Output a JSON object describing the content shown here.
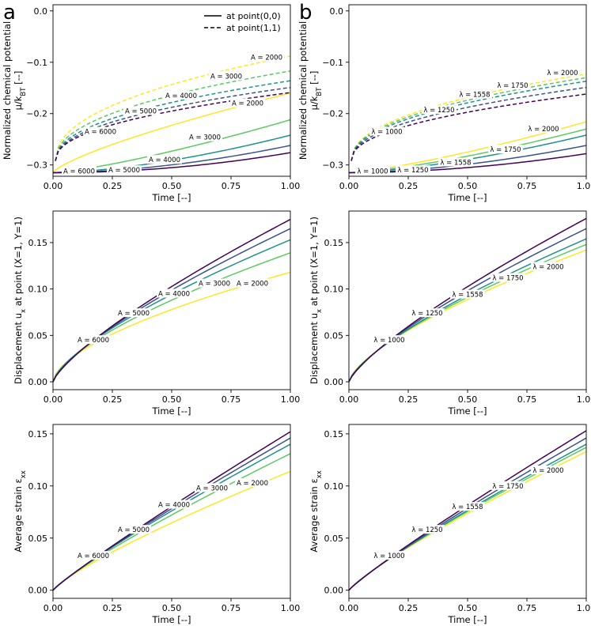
{
  "figure": {
    "panel_letters": [
      "a",
      "b"
    ],
    "legend": [
      {
        "label": "at point(0,0)",
        "style": "solid"
      },
      {
        "label": "at point(1,1)",
        "style": "dashed"
      }
    ],
    "x_axis_label": "Time [--]"
  },
  "colors": {
    "A": {
      "2000": "#fde725",
      "3000": "#5ec962",
      "4000": "#21918c",
      "5000": "#3b528b",
      "6000": "#440154"
    },
    "lambda": {
      "1000": "#440154",
      "1250": "#3b528b",
      "1558": "#21918c",
      "1750": "#5ec962",
      "2000": "#fde725"
    }
  },
  "chart_data": [
    {
      "id": "a-top",
      "type": "line",
      "ylabel_line1": "Normalized chemical potential",
      "ylabel_line2": "μ/k_BT [--]",
      "xlabel": "Time [--]",
      "xlim": [
        0,
        1
      ],
      "ylim": [
        -0.322,
        0.012
      ],
      "xticks": [
        0,
        0.25,
        0.5,
        0.75,
        1.0
      ],
      "xtick_labels": [
        "0.00",
        "0.25",
        "0.50",
        "0.75",
        "1.00"
      ],
      "yticks": [
        -0.3,
        -0.2,
        -0.1,
        0.0
      ],
      "ytick_labels": [
        "−0.3",
        "−0.2",
        "−0.1",
        "0.0"
      ],
      "series": [
        {
          "name": "A = 2000",
          "key": "2000",
          "style": "solid",
          "kind": "power",
          "y0": -0.315,
          "y1": -0.16,
          "p": 0.75
        },
        {
          "name": "A = 3000",
          "key": "3000",
          "style": "solid",
          "kind": "power",
          "y0": -0.315,
          "y1": -0.212,
          "p": 1.3
        },
        {
          "name": "A = 4000",
          "key": "4000",
          "style": "solid",
          "kind": "power",
          "y0": -0.315,
          "y1": -0.242,
          "p": 1.6
        },
        {
          "name": "A = 5000",
          "key": "5000",
          "style": "solid",
          "kind": "power",
          "y0": -0.315,
          "y1": -0.262,
          "p": 1.8
        },
        {
          "name": "A = 6000",
          "key": "6000",
          "style": "solid",
          "kind": "power",
          "y0": -0.315,
          "y1": -0.276,
          "p": 2.0
        },
        {
          "name": "A = 2000",
          "key": "2000",
          "style": "dashed",
          "kind": "power",
          "y0": -0.292,
          "y1": -0.088,
          "p": 0.45
        },
        {
          "name": "A = 3000",
          "key": "3000",
          "style": "dashed",
          "kind": "power",
          "y0": -0.292,
          "y1": -0.117,
          "p": 0.45
        },
        {
          "name": "A = 4000",
          "key": "4000",
          "style": "dashed",
          "kind": "power",
          "y0": -0.292,
          "y1": -0.136,
          "p": 0.45
        },
        {
          "name": "A = 5000",
          "key": "5000",
          "style": "dashed",
          "kind": "power",
          "y0": -0.292,
          "y1": -0.149,
          "p": 0.45
        },
        {
          "name": "A = 6000",
          "key": "6000",
          "style": "dashed",
          "kind": "power",
          "y0": -0.292,
          "y1": -0.159,
          "p": 0.45
        }
      ],
      "annotations": [
        {
          "text": "A = 2000",
          "x": 0.9,
          "y": -0.09
        },
        {
          "text": "A = 3000",
          "x": 0.73,
          "y": -0.127
        },
        {
          "text": "A = 4000",
          "x": 0.54,
          "y": -0.165
        },
        {
          "text": "A = 5000",
          "x": 0.37,
          "y": -0.195
        },
        {
          "text": "A = 6000",
          "x": 0.2,
          "y": -0.235
        },
        {
          "text": "A = 2000",
          "x": 0.82,
          "y": -0.18
        },
        {
          "text": "A = 3000",
          "x": 0.64,
          "y": -0.246
        },
        {
          "text": "A = 4000",
          "x": 0.47,
          "y": -0.29
        },
        {
          "text": "A = 5000",
          "x": 0.3,
          "y": -0.31
        },
        {
          "text": "A = 6000",
          "x": 0.11,
          "y": -0.312
        }
      ]
    },
    {
      "id": "b-top",
      "type": "line",
      "ylabel_line1": "Normalized chemical potential",
      "ylabel_line2": "μ/k_BT [--]",
      "xlabel": "Time [--]",
      "xlim": [
        0,
        1
      ],
      "ylim": [
        -0.322,
        0.012
      ],
      "xticks": [
        0,
        0.25,
        0.5,
        0.75,
        1.0
      ],
      "xtick_labels": [
        "0.00",
        "0.25",
        "0.50",
        "0.75",
        "1.00"
      ],
      "yticks": [
        -0.3,
        -0.2,
        -0.1,
        0.0
      ],
      "ytick_labels": [
        "−0.3",
        "−0.2",
        "−0.1",
        "0.0"
      ],
      "series": [
        {
          "name": "λ = 2000",
          "key": "2000",
          "style": "solid",
          "kind": "power",
          "y0": -0.315,
          "y1": -0.216,
          "p": 1.3
        },
        {
          "name": "λ = 1750",
          "key": "1750",
          "style": "solid",
          "kind": "power",
          "y0": -0.315,
          "y1": -0.23,
          "p": 1.4
        },
        {
          "name": "λ = 1558",
          "key": "1558",
          "style": "solid",
          "kind": "power",
          "y0": -0.315,
          "y1": -0.242,
          "p": 1.5
        },
        {
          "name": "λ = 1250",
          "key": "1250",
          "style": "solid",
          "kind": "power",
          "y0": -0.315,
          "y1": -0.262,
          "p": 1.7
        },
        {
          "name": "λ = 1000",
          "key": "1000",
          "style": "solid",
          "kind": "power",
          "y0": -0.315,
          "y1": -0.278,
          "p": 1.9
        },
        {
          "name": "λ = 2000",
          "key": "2000",
          "style": "dashed",
          "kind": "power",
          "y0": -0.292,
          "y1": -0.123,
          "p": 0.45
        },
        {
          "name": "λ = 1750",
          "key": "1750",
          "style": "dashed",
          "kind": "power",
          "y0": -0.292,
          "y1": -0.13,
          "p": 0.45
        },
        {
          "name": "λ = 1558",
          "key": "1558",
          "style": "dashed",
          "kind": "power",
          "y0": -0.292,
          "y1": -0.137,
          "p": 0.45
        },
        {
          "name": "λ = 1250",
          "key": "1250",
          "style": "dashed",
          "kind": "power",
          "y0": -0.292,
          "y1": -0.149,
          "p": 0.45
        },
        {
          "name": "λ = 1000",
          "key": "1000",
          "style": "dashed",
          "kind": "power",
          "y0": -0.292,
          "y1": -0.162,
          "p": 0.45
        }
      ],
      "annotations": [
        {
          "text": "λ = 2000",
          "x": 0.9,
          "y": -0.12
        },
        {
          "text": "λ = 1750",
          "x": 0.69,
          "y": -0.145
        },
        {
          "text": "λ = 1558",
          "x": 0.53,
          "y": -0.163
        },
        {
          "text": "λ = 1250",
          "x": 0.38,
          "y": -0.193
        },
        {
          "text": "λ = 1000",
          "x": 0.16,
          "y": -0.235
        },
        {
          "text": "λ = 2000",
          "x": 0.82,
          "y": -0.23
        },
        {
          "text": "λ = 1750",
          "x": 0.66,
          "y": -0.27
        },
        {
          "text": "λ = 1558",
          "x": 0.45,
          "y": -0.295
        },
        {
          "text": "λ = 1250",
          "x": 0.27,
          "y": -0.31
        },
        {
          "text": "λ = 1000",
          "x": 0.1,
          "y": -0.312
        }
      ]
    },
    {
      "id": "a-mid",
      "type": "line",
      "ylabel_line1": "Displacement u_x at point (X=1, Y=1)",
      "ylabel_line2": "",
      "xlabel": "Time [--]",
      "xlim": [
        0,
        1
      ],
      "ylim": [
        -0.0085,
        0.184
      ],
      "xticks": [
        0,
        0.25,
        0.5,
        0.75,
        1.0
      ],
      "xtick_labels": [
        "0.00",
        "0.25",
        "0.50",
        "0.75",
        "1.00"
      ],
      "yticks": [
        0,
        0.05,
        0.1,
        0.15
      ],
      "ytick_labels": [
        "0.00",
        "0.05",
        "0.10",
        "0.15"
      ],
      "series": [
        {
          "name": "A = 2000",
          "key": "2000",
          "style": "solid",
          "kind": "power",
          "y0": 0,
          "y1": 0.118,
          "p": 0.6
        },
        {
          "name": "A = 3000",
          "key": "3000",
          "style": "solid",
          "kind": "power",
          "y0": 0,
          "y1": 0.139,
          "p": 0.66
        },
        {
          "name": "A = 4000",
          "key": "4000",
          "style": "solid",
          "kind": "power",
          "y0": 0,
          "y1": 0.153,
          "p": 0.7
        },
        {
          "name": "A = 5000",
          "key": "5000",
          "style": "solid",
          "kind": "power",
          "y0": 0,
          "y1": 0.165,
          "p": 0.74
        },
        {
          "name": "A = 6000",
          "key": "6000",
          "style": "solid",
          "kind": "power",
          "y0": 0,
          "y1": 0.175,
          "p": 0.77
        }
      ],
      "annotations": [
        {
          "text": "A = 6000",
          "x": 0.17,
          "y": 0.045
        },
        {
          "text": "A = 5000",
          "x": 0.34,
          "y": 0.074
        },
        {
          "text": "A = 4000",
          "x": 0.51,
          "y": 0.095
        },
        {
          "text": "A = 3000",
          "x": 0.68,
          "y": 0.106
        },
        {
          "text": "A = 2000",
          "x": 0.84,
          "y": 0.106
        }
      ]
    },
    {
      "id": "b-mid",
      "type": "line",
      "ylabel_line1": "Displacement u_x at point (X=1, Y=1)",
      "ylabel_line2": "",
      "xlabel": "Time [--]",
      "xlim": [
        0,
        1
      ],
      "ylim": [
        -0.0085,
        0.184
      ],
      "xticks": [
        0,
        0.25,
        0.5,
        0.75,
        1.0
      ],
      "xtick_labels": [
        "0.00",
        "0.25",
        "0.50",
        "0.75",
        "1.00"
      ],
      "yticks": [
        0,
        0.05,
        0.1,
        0.15
      ],
      "ytick_labels": [
        "0.00",
        "0.05",
        "0.10",
        "0.15"
      ],
      "series": [
        {
          "name": "λ = 2000",
          "key": "2000",
          "style": "solid",
          "kind": "power",
          "y0": 0,
          "y1": 0.142,
          "p": 0.68
        },
        {
          "name": "λ = 1750",
          "key": "1750",
          "style": "solid",
          "kind": "power",
          "y0": 0,
          "y1": 0.148,
          "p": 0.7
        },
        {
          "name": "λ = 1558",
          "key": "1558",
          "style": "solid",
          "kind": "power",
          "y0": 0,
          "y1": 0.154,
          "p": 0.72
        },
        {
          "name": "λ = 1250",
          "key": "1250",
          "style": "solid",
          "kind": "power",
          "y0": 0,
          "y1": 0.165,
          "p": 0.75
        },
        {
          "name": "λ = 1000",
          "key": "1000",
          "style": "solid",
          "kind": "power",
          "y0": 0,
          "y1": 0.176,
          "p": 0.78
        }
      ],
      "annotations": [
        {
          "text": "λ = 1000",
          "x": 0.17,
          "y": 0.045
        },
        {
          "text": "λ = 1250",
          "x": 0.33,
          "y": 0.074
        },
        {
          "text": "λ = 1558",
          "x": 0.5,
          "y": 0.094
        },
        {
          "text": "λ = 1750",
          "x": 0.67,
          "y": 0.112
        },
        {
          "text": "λ = 2000",
          "x": 0.84,
          "y": 0.124
        }
      ]
    },
    {
      "id": "a-bot",
      "type": "line",
      "ylabel_line1": "Average strain ε_xx",
      "ylabel_line2": "",
      "xlabel": "Time [--]",
      "xlim": [
        0,
        1
      ],
      "ylim": [
        -0.0078,
        0.159
      ],
      "xticks": [
        0,
        0.25,
        0.5,
        0.75,
        1.0
      ],
      "xtick_labels": [
        "0.00",
        "0.25",
        "0.50",
        "0.75",
        "1.00"
      ],
      "yticks": [
        0,
        0.05,
        0.1,
        0.15
      ],
      "ytick_labels": [
        "0.00",
        "0.05",
        "0.10",
        "0.15"
      ],
      "series": [
        {
          "name": "A = 2000",
          "key": "2000",
          "style": "solid",
          "kind": "power",
          "y0": 0,
          "y1": 0.114,
          "p": 0.82
        },
        {
          "name": "A = 3000",
          "key": "3000",
          "style": "solid",
          "kind": "power",
          "y0": 0,
          "y1": 0.131,
          "p": 0.86
        },
        {
          "name": "A = 4000",
          "key": "4000",
          "style": "solid",
          "kind": "power",
          "y0": 0,
          "y1": 0.14,
          "p": 0.88
        },
        {
          "name": "A = 5000",
          "key": "5000",
          "style": "solid",
          "kind": "power",
          "y0": 0,
          "y1": 0.146,
          "p": 0.9
        },
        {
          "name": "A = 6000",
          "key": "6000",
          "style": "solid",
          "kind": "power",
          "y0": 0,
          "y1": 0.152,
          "p": 0.92
        }
      ],
      "annotations": [
        {
          "text": "A = 6000",
          "x": 0.17,
          "y": 0.033
        },
        {
          "text": "A = 5000",
          "x": 0.34,
          "y": 0.058
        },
        {
          "text": "A = 4000",
          "x": 0.51,
          "y": 0.082
        },
        {
          "text": "A = 3000",
          "x": 0.67,
          "y": 0.098
        },
        {
          "text": "A = 2000",
          "x": 0.84,
          "y": 0.103
        }
      ]
    },
    {
      "id": "b-bot",
      "type": "line",
      "ylabel_line1": "Average strain ε_xx",
      "ylabel_line2": "",
      "xlabel": "Time [--]",
      "xlim": [
        0,
        1
      ],
      "ylim": [
        -0.0078,
        0.159
      ],
      "xticks": [
        0,
        0.25,
        0.5,
        0.75,
        1.0
      ],
      "xtick_labels": [
        "0.00",
        "0.25",
        "0.50",
        "0.75",
        "1.00"
      ],
      "yticks": [
        0,
        0.05,
        0.1,
        0.15
      ],
      "ytick_labels": [
        "0.00",
        "0.05",
        "0.10",
        "0.15"
      ],
      "series": [
        {
          "name": "λ = 2000",
          "key": "2000",
          "style": "solid",
          "kind": "power",
          "y0": 0,
          "y1": 0.133,
          "p": 0.85
        },
        {
          "name": "λ = 1750",
          "key": "1750",
          "style": "solid",
          "kind": "power",
          "y0": 0,
          "y1": 0.137,
          "p": 0.86
        },
        {
          "name": "λ = 1558",
          "key": "1558",
          "style": "solid",
          "kind": "power",
          "y0": 0,
          "y1": 0.14,
          "p": 0.87
        },
        {
          "name": "λ = 1250",
          "key": "1250",
          "style": "solid",
          "kind": "power",
          "y0": 0,
          "y1": 0.146,
          "p": 0.89
        },
        {
          "name": "λ = 1000",
          "key": "1000",
          "style": "solid",
          "kind": "power",
          "y0": 0,
          "y1": 0.153,
          "p": 0.91
        }
      ],
      "annotations": [
        {
          "text": "λ = 1000",
          "x": 0.17,
          "y": 0.033
        },
        {
          "text": "λ = 1250",
          "x": 0.33,
          "y": 0.058
        },
        {
          "text": "λ = 1558",
          "x": 0.5,
          "y": 0.08
        },
        {
          "text": "λ = 1750",
          "x": 0.67,
          "y": 0.1
        },
        {
          "text": "λ = 2000",
          "x": 0.84,
          "y": 0.115
        }
      ]
    }
  ]
}
